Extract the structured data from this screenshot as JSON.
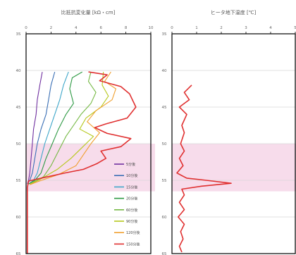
{
  "chart_data": [
    {
      "type": "line",
      "title": "比抵抗変化量 [kΩ・cm]",
      "xlabel": "",
      "ylabel": "",
      "xlim": [
        0,
        10
      ],
      "ylim": [
        65,
        35
      ],
      "x_ticks": [
        "0",
        "2",
        "4",
        "6",
        "8",
        "10"
      ],
      "y_ticks": [
        "35",
        "40",
        "45",
        "50",
        "55",
        "60",
        "65"
      ],
      "highlight_band": [
        50,
        56.5
      ],
      "legend_position": "bottom-right",
      "series": [
        {
          "name": "5分後",
          "color": "#7030A0",
          "points": [
            [
              1.3,
              40.2
            ],
            [
              1.1,
              42
            ],
            [
              0.9,
              44
            ],
            [
              0.8,
              46
            ],
            [
              0.6,
              48
            ],
            [
              0.5,
              50
            ],
            [
              0.4,
              52
            ],
            [
              0.3,
              54
            ],
            [
              0.2,
              55
            ],
            [
              0.1,
              55.5
            ]
          ]
        },
        {
          "name": "10分後",
          "color": "#3A6FB5",
          "points": [
            [
              2.3,
              40.2
            ],
            [
              2.0,
              42
            ],
            [
              1.8,
              44
            ],
            [
              1.6,
              46
            ],
            [
              1.2,
              48
            ],
            [
              0.9,
              50
            ],
            [
              0.7,
              52
            ],
            [
              0.5,
              54
            ],
            [
              0.3,
              55
            ],
            [
              0.1,
              55.5
            ]
          ]
        },
        {
          "name": "15分後",
          "color": "#3DA6C9",
          "points": [
            [
              3.4,
              40.2
            ],
            [
              3.0,
              42
            ],
            [
              2.7,
              44
            ],
            [
              2.3,
              46
            ],
            [
              1.9,
              48
            ],
            [
              1.5,
              50
            ],
            [
              1.2,
              52
            ],
            [
              0.9,
              54
            ],
            [
              0.6,
              55
            ],
            [
              0.2,
              55.5
            ]
          ]
        },
        {
          "name": "20分後",
          "color": "#2E9A44",
          "points": [
            [
              4.5,
              40.2
            ],
            [
              3.7,
              41
            ],
            [
              3.5,
              42.5
            ],
            [
              3.8,
              44.5
            ],
            [
              3.2,
              46
            ],
            [
              2.6,
              48
            ],
            [
              2.1,
              50
            ],
            [
              1.6,
              52
            ],
            [
              1.2,
              54
            ],
            [
              0.7,
              55
            ],
            [
              0.2,
              55.5
            ]
          ]
        },
        {
          "name": "60分後",
          "color": "#74B843",
          "points": [
            [
              5.2,
              40.2
            ],
            [
              5.0,
              41.5
            ],
            [
              5.6,
              43
            ],
            [
              5.2,
              44.5
            ],
            [
              4.4,
              46
            ],
            [
              3.8,
              47.5
            ],
            [
              3.2,
              49
            ],
            [
              2.6,
              51
            ],
            [
              2.0,
              53
            ],
            [
              1.4,
              54.5
            ],
            [
              0.3,
              55.5
            ]
          ]
        },
        {
          "name": "90分後",
          "color": "#B6C81C",
          "points": [
            [
              6.2,
              40.2
            ],
            [
              6.1,
              42
            ],
            [
              6.6,
              43.5
            ],
            [
              6.0,
              45
            ],
            [
              4.8,
              46.5
            ],
            [
              4.3,
              48
            ],
            [
              5.4,
              49
            ],
            [
              4.5,
              50.5
            ],
            [
              3.6,
              52
            ],
            [
              2.5,
              53.5
            ],
            [
              1.0,
              55
            ],
            [
              0.3,
              55.5
            ]
          ]
        },
        {
          "name": "120分後",
          "color": "#F0A030",
          "points": [
            [
              6.8,
              40.2
            ],
            [
              6.3,
              41.5
            ],
            [
              7.2,
              42.5
            ],
            [
              6.9,
              44
            ],
            [
              5.6,
              45.5
            ],
            [
              4.9,
              47
            ],
            [
              5.9,
              48.5
            ],
            [
              5.2,
              50
            ],
            [
              4.6,
              51.5
            ],
            [
              4.0,
              53
            ],
            [
              2.6,
              54.2
            ],
            [
              0.9,
              55.2
            ],
            [
              0.3,
              55.6
            ]
          ]
        },
        {
          "name": "150分後",
          "color": "#E03030",
          "points": [
            [
              5.0,
              40.2
            ],
            [
              6.5,
              40.6
            ],
            [
              5.9,
              41.4
            ],
            [
              7.6,
              42.2
            ],
            [
              8.3,
              43.2
            ],
            [
              8.8,
              45
            ],
            [
              8.1,
              46.5
            ],
            [
              6.4,
              47.3
            ],
            [
              5.5,
              47.8
            ],
            [
              6.5,
              48.6
            ],
            [
              8.4,
              49.3
            ],
            [
              7.6,
              50.4
            ],
            [
              6.0,
              51
            ],
            [
              6.4,
              52
            ],
            [
              5.7,
              52.7
            ],
            [
              4.6,
              53.5
            ],
            [
              3.1,
              54
            ],
            [
              1.5,
              54.6
            ],
            [
              0.2,
              55.1
            ],
            [
              0.1,
              56
            ],
            [
              0.1,
              65
            ]
          ]
        }
      ]
    },
    {
      "type": "line",
      "title": "ヒータ地下温度 [℃]",
      "xlabel": "",
      "ylabel": "",
      "xlim": [
        0,
        5
      ],
      "ylim": [
        65,
        35
      ],
      "x_ticks": [
        "0",
        "1",
        "2",
        "3",
        "4",
        "5"
      ],
      "y_ticks": [
        "35",
        "40",
        "45",
        "50",
        "55",
        "60",
        "65"
      ],
      "highlight_band": [
        50,
        56.5
      ],
      "series": [
        {
          "name": "",
          "color": "#E03030",
          "points": [
            [
              0.8,
              42
            ],
            [
              0.5,
              43
            ],
            [
              0.7,
              44
            ],
            [
              0.3,
              45
            ],
            [
              0.6,
              46
            ],
            [
              0.4,
              47.5
            ],
            [
              0.5,
              48.5
            ],
            [
              0.35,
              50
            ],
            [
              0.5,
              51
            ],
            [
              0.3,
              52
            ],
            [
              0.45,
              53
            ],
            [
              0.2,
              54
            ],
            [
              0.6,
              54.7
            ],
            [
              1.4,
              55
            ],
            [
              2.4,
              55.4
            ],
            [
              1.2,
              55.8
            ],
            [
              0.4,
              56.2
            ],
            [
              0.5,
              57
            ],
            [
              0.3,
              58
            ],
            [
              0.5,
              59
            ],
            [
              0.25,
              60
            ],
            [
              0.5,
              61
            ],
            [
              0.35,
              62
            ],
            [
              0.45,
              63
            ],
            [
              0.3,
              64
            ],
            [
              0.4,
              64.8
            ]
          ]
        }
      ]
    }
  ]
}
